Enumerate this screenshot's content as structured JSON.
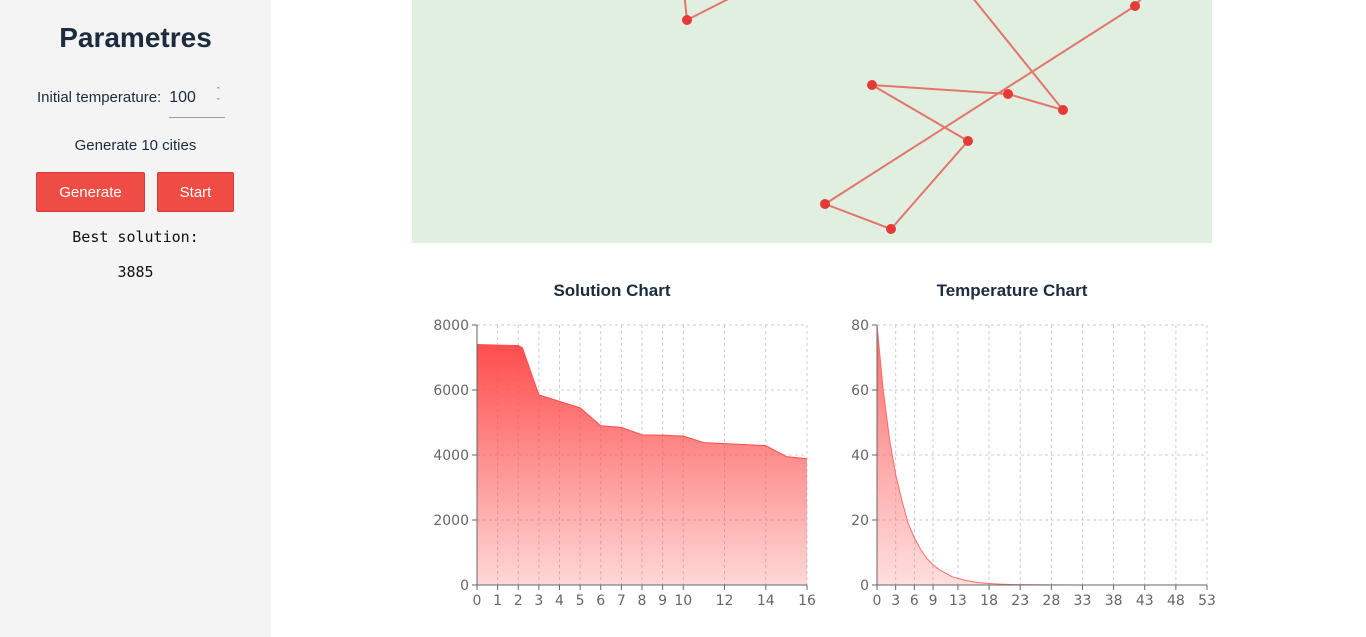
{
  "sidebar": {
    "title": "Parametres",
    "temperature_label": "Initial temperature:",
    "temperature_value": "100",
    "generate_text": "Generate 10 cities",
    "generate_button": "Generate",
    "start_button": "Start",
    "best_label": "Best solution:",
    "best_value": "3885"
  },
  "colors": {
    "accent": "#ef4c45",
    "map_background": "#e0efe0",
    "route_line": "#e4756c",
    "city_point": "#e53a35"
  },
  "map": {
    "route_order": "visible segments of closed city tour"
  },
  "chart_data": [
    {
      "type": "area",
      "title": "Solution Chart",
      "x": [
        0,
        1,
        2,
        2.2,
        3,
        4,
        5,
        6,
        7,
        8,
        9,
        10,
        11,
        12,
        13,
        14,
        15,
        16
      ],
      "values": [
        7400,
        7380,
        7370,
        7300,
        5850,
        5650,
        5450,
        4900,
        4850,
        4620,
        4610,
        4580,
        4380,
        4350,
        4320,
        4290,
        3950,
        3885
      ],
      "xticks": [
        "0",
        "1",
        "2",
        "3",
        "4",
        "5",
        "6",
        "7",
        "8",
        "9",
        "10",
        "12",
        "14",
        "16"
      ],
      "yticks": [
        "0",
        "2000",
        "4000",
        "6000",
        "8000"
      ],
      "xlim": [
        0,
        16
      ],
      "ylim": [
        0,
        8000
      ],
      "grid": true,
      "color": "#ff4d4d"
    },
    {
      "type": "area",
      "title": "Temperature Chart",
      "x": [
        0,
        1,
        2,
        3,
        4,
        5,
        6,
        7,
        8,
        9,
        10,
        12,
        14,
        16,
        18,
        20,
        23,
        28,
        33,
        38,
        43,
        48,
        53
      ],
      "values": [
        80,
        60,
        45,
        34,
        26,
        19,
        14.5,
        11,
        8.2,
        6.2,
        4.7,
        2.6,
        1.5,
        0.8,
        0.45,
        0.25,
        0.1,
        0.02,
        0,
        0,
        0,
        0,
        0
      ],
      "xticks": [
        "0",
        "3",
        "6",
        "9",
        "13",
        "18",
        "23",
        "28",
        "33",
        "38",
        "43",
        "48",
        "53"
      ],
      "yticks": [
        "0",
        "20",
        "40",
        "60",
        "80"
      ],
      "xlim": [
        0,
        53
      ],
      "ylim": [
        0,
        80
      ],
      "grid": true,
      "color": "#ff6b6b"
    }
  ]
}
